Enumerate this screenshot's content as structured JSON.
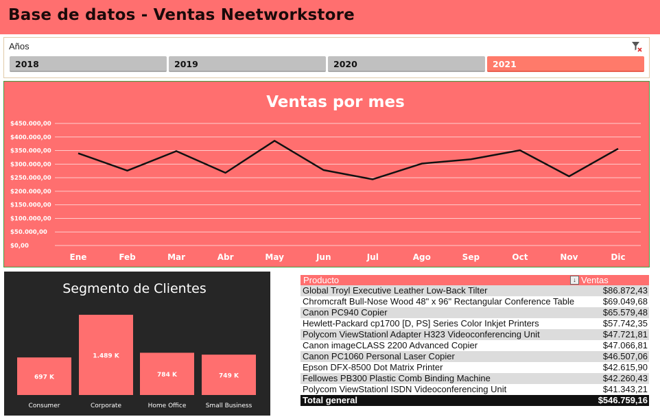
{
  "header": {
    "title": "Base de datos - Ventas Neetworkstore"
  },
  "slicer": {
    "label": "Años",
    "clear_icon": "clear-filter-icon",
    "years": [
      {
        "label": "2018",
        "selected": false
      },
      {
        "label": "2019",
        "selected": false
      },
      {
        "label": "2020",
        "selected": false
      },
      {
        "label": "2021",
        "selected": true
      }
    ]
  },
  "colors": {
    "accent": "#ff6f6f",
    "selected": "#ff7a6a",
    "dark": "#262626",
    "line": "#111111"
  },
  "chart_data": [
    {
      "type": "line",
      "title": "Ventas por mes",
      "categories": [
        "Ene",
        "Feb",
        "Mar",
        "Abr",
        "May",
        "Jun",
        "Jul",
        "Ago",
        "Sep",
        "Oct",
        "Nov",
        "Dic"
      ],
      "values": [
        340000,
        276000,
        348000,
        268000,
        386000,
        278000,
        244000,
        302000,
        318000,
        351000,
        255000,
        357000
      ],
      "y_ticks": [
        "$0,00",
        "$50.000,00",
        "$100.000,00",
        "$150.000,00",
        "$200.000,00",
        "$250.000,00",
        "$300.000,00",
        "$350.000,00",
        "$400.000,00",
        "$450.000,00"
      ],
      "ylim": [
        0,
        450000
      ],
      "grid": true
    },
    {
      "type": "bar",
      "title": "Segmento de Clientes",
      "categories": [
        "Consumer",
        "Corporate",
        "Home Office",
        "Small Business"
      ],
      "values": [
        697,
        1489,
        784,
        749
      ],
      "data_labels": [
        "697 K",
        "1.489 K",
        "784 K",
        "749 K"
      ],
      "ylim": [
        0,
        1700
      ],
      "grid": false
    }
  ],
  "pivot": {
    "header_product": "Producto",
    "header_sales": "Ventas",
    "sort_icon": "sort-descending-icon",
    "rows": [
      {
        "name": "Global Troyl Executive Leather Low-Back Tilter",
        "value": "$86.872,43"
      },
      {
        "name": "Chromcraft Bull-Nose Wood 48\" x 96\" Rectangular Conference Table",
        "value": "$69.049,68"
      },
      {
        "name": "Canon PC940 Copier",
        "value": "$65.579,48"
      },
      {
        "name": "Hewlett-Packard cp1700 [D, PS] Series Color Inkjet Printers",
        "value": "$57.742,35"
      },
      {
        "name": "Polycom ViewStationl Adapter H323 Videoconferencing Unit",
        "value": "$47.721,81"
      },
      {
        "name": "Canon imageCLASS 2200 Advanced Copier",
        "value": "$47.066,81"
      },
      {
        "name": "Canon PC1060 Personal Laser Copier",
        "value": "$46.507,06"
      },
      {
        "name": "Epson DFX-8500 Dot Matrix Printer",
        "value": "$42.615,90"
      },
      {
        "name": "Fellowes PB300 Plastic Comb Binding Machine",
        "value": "$42.260,43"
      },
      {
        "name": "Polycom ViewStationl ISDN Videoconferencing Unit",
        "value": "$41.343,21"
      }
    ],
    "total_label": "Total general",
    "total_value": "$546.759,16"
  }
}
